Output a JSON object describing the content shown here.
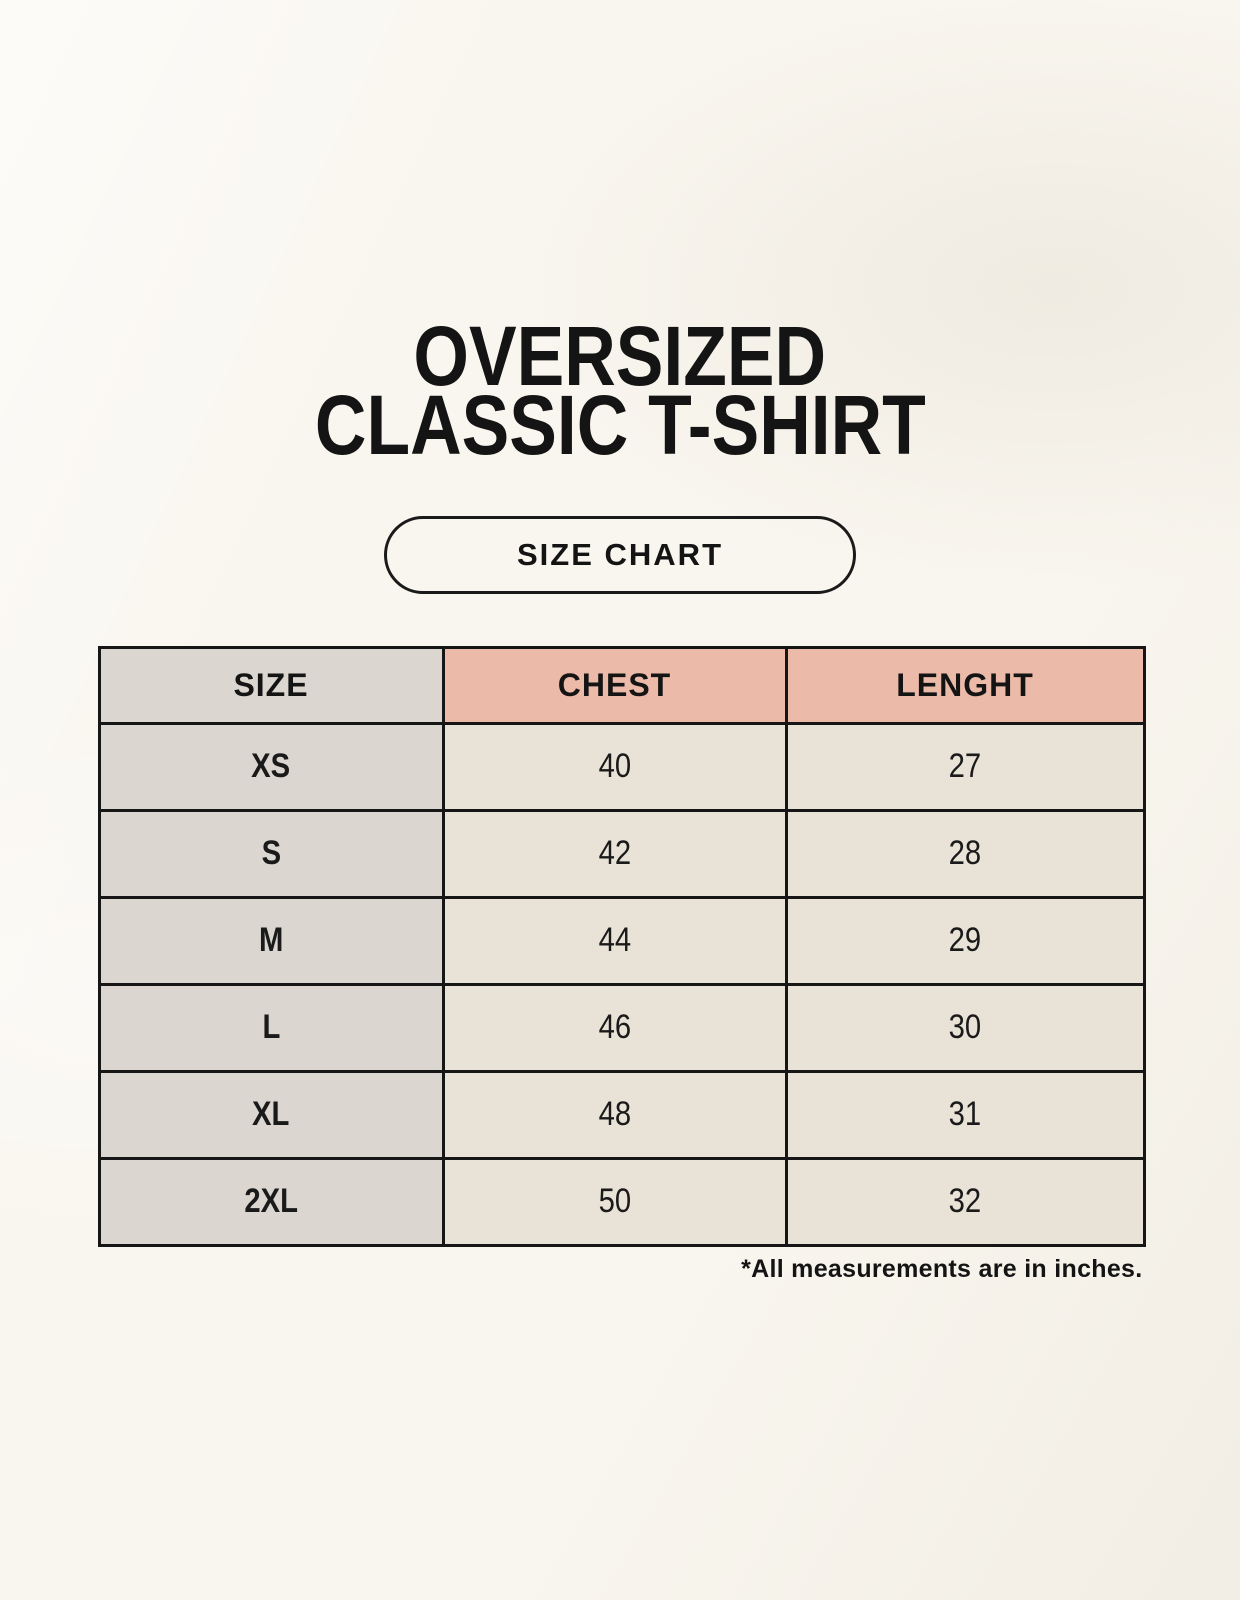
{
  "title": {
    "line1": "OVERSIZED",
    "line2": "CLASSIC T-SHIRT"
  },
  "size_chart_button": {
    "label": "SIZE CHART"
  },
  "chart_data": {
    "type": "table",
    "title": "OVERSIZED CLASSIC T-SHIRT",
    "subtitle": "SIZE CHART",
    "columns": [
      "SIZE",
      "CHEST",
      "LENGHT"
    ],
    "rows": [
      [
        "XS",
        "40",
        "27"
      ],
      [
        "S",
        "42",
        "28"
      ],
      [
        "M",
        "44",
        "29"
      ],
      [
        "L",
        "46",
        "30"
      ],
      [
        "XL",
        "48",
        "31"
      ],
      [
        "2XL",
        "50",
        "32"
      ]
    ],
    "units": "inches"
  },
  "footnote": "*All measurements are in inches.",
  "colors": {
    "page_background": "#f9f6ef",
    "header_accent": "#ebbaa9",
    "neutral_cell": "#dcd6d0",
    "data_cell": "#e9e2d7",
    "border": "#161616",
    "text": "#141414"
  }
}
